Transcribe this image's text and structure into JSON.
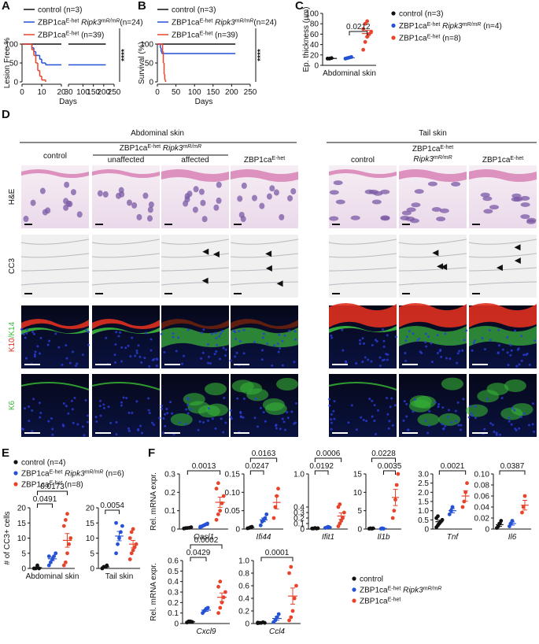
{
  "panels": [
    "A",
    "B",
    "C",
    "D",
    "E",
    "F"
  ],
  "chart_data": [
    {
      "type": "survival",
      "ylabel": "Lesion Free %",
      "xlabel": "Days",
      "xlim": [
        0,
        250
      ],
      "xbreak": [
        20,
        30
      ],
      "xticks": [
        0,
        10,
        20,
        30,
        100,
        150,
        200,
        250
      ],
      "ylim": [
        0,
        100
      ],
      "yticks": [
        0,
        50,
        100
      ],
      "significance": "****",
      "series": [
        {
          "name": "control (n=3)",
          "color": "#111111",
          "x": [
            0,
            210
          ],
          "values": [
            100,
            100
          ]
        },
        {
          "name": [
            {
              "text": "ZBP1ca"
            },
            {
              "text": "E-het",
              "sup": true
            },
            {
              "text": " Ripk3",
              "italic": true
            },
            {
              "text": "mR/mR",
              "sup": true,
              "italic": true
            },
            {
              "text": "(n=24)"
            }
          ],
          "color": "#2451d6",
          "x": [
            0,
            5,
            6,
            7,
            9,
            10,
            12,
            210
          ],
          "values": [
            100,
            90,
            80,
            70,
            60,
            50,
            45,
            45
          ]
        },
        {
          "name": [
            {
              "text": "ZBP1ca"
            },
            {
              "text": "E-het",
              "sup": true
            },
            {
              "text": " (n=39)"
            }
          ],
          "color": "#e8442c",
          "x": [
            0,
            5,
            6,
            7,
            8,
            9,
            10,
            12
          ],
          "values": [
            100,
            85,
            70,
            50,
            30,
            15,
            5,
            0
          ]
        }
      ]
    },
    {
      "type": "survival",
      "ylabel": "Survival (%)",
      "xlabel": "Days",
      "xlim": [
        0,
        250
      ],
      "xticks": [
        0,
        50,
        100,
        150,
        200,
        250
      ],
      "ylim": [
        0,
        100
      ],
      "yticks": [
        0,
        50,
        100
      ],
      "significance": "****",
      "series": [
        {
          "name": "control (n=3)",
          "color": "#111111",
          "x": [
            0,
            210
          ],
          "values": [
            100,
            100
          ]
        },
        {
          "name": [
            {
              "text": "ZBP1ca"
            },
            {
              "text": "E-het",
              "sup": true
            },
            {
              "text": " Ripk3",
              "italic": true
            },
            {
              "text": "mR/mR",
              "sup": true,
              "italic": true
            },
            {
              "text": "(n=24)"
            }
          ],
          "color": "#2451d6",
          "x": [
            0,
            8,
            10,
            12,
            210
          ],
          "values": [
            100,
            90,
            80,
            75,
            75
          ]
        },
        {
          "name": [
            {
              "text": "ZBP1ca"
            },
            {
              "text": "E-het",
              "sup": true
            },
            {
              "text": " (n=39)"
            }
          ],
          "color": "#e8442c",
          "x": [
            0,
            14,
            16,
            18,
            20,
            22
          ],
          "values": [
            100,
            80,
            50,
            20,
            5,
            0
          ]
        }
      ]
    },
    {
      "type": "dot",
      "ylabel": "Ep. thickness (µm)",
      "xlabel": "Abdominal skin",
      "ylim": [
        0,
        100
      ],
      "yticks": [
        0,
        20,
        40,
        60,
        80,
        100
      ],
      "series": [
        {
          "name": "control (n=3)",
          "color": "#111111",
          "values": [
            13,
            13,
            14
          ]
        },
        {
          "name": [
            {
              "text": "ZBP1ca"
            },
            {
              "text": "E-het",
              "sup": true
            },
            {
              "text": " Ripk3",
              "italic": true
            },
            {
              "text": "mR/mR",
              "sup": true,
              "italic": true
            },
            {
              "text": " (n=4)"
            }
          ],
          "color": "#2451d6",
          "values": [
            13,
            14,
            15,
            16
          ]
        },
        {
          "name": [
            {
              "text": "ZBP1ca"
            },
            {
              "text": "E-het",
              "sup": true
            },
            {
              "text": " (n=8)"
            }
          ],
          "color": "#e8442c",
          "values": [
            30,
            45,
            55,
            60,
            65,
            70,
            80,
            85
          ]
        }
      ],
      "annotations": [
        {
          "text": "0.0212",
          "between": [
            1,
            2
          ]
        }
      ]
    },
    {
      "type": "dot",
      "ylabel": "# of CC3+ cells",
      "xlabel": "Abdominal skin",
      "ylim": [
        0,
        20
      ],
      "yticks": [
        0,
        5,
        10,
        15,
        20
      ],
      "series": [
        {
          "color": "#111111",
          "values": [
            0,
            0,
            1,
            0
          ]
        },
        {
          "color": "#2451d6",
          "values": [
            1,
            2,
            3,
            4,
            5,
            4
          ]
        },
        {
          "color": "#e8442c",
          "values": [
            1,
            2,
            5,
            8,
            10,
            14,
            16,
            18
          ]
        }
      ],
      "annotations": [
        {
          "text": "0.0491",
          "between": [
            0,
            1
          ]
        },
        {
          "text": "0.0173",
          "between": [
            0,
            2
          ]
        }
      ]
    },
    {
      "type": "dot",
      "xlabel": "Tail skin",
      "ylim": [
        0,
        20
      ],
      "yticks": [
        0,
        5,
        10,
        15,
        20
      ],
      "series": [
        {
          "color": "#111111",
          "values": [
            0,
            0.5,
            0.5,
            1
          ]
        },
        {
          "color": "#2451d6",
          "values": [
            5,
            8,
            10,
            12,
            14,
            15
          ]
        },
        {
          "color": "#e8442c",
          "values": [
            3,
            5,
            6,
            7,
            8,
            10,
            12,
            13
          ]
        }
      ],
      "annotations": [
        {
          "text": "0.0054",
          "between": [
            0,
            1
          ]
        }
      ]
    },
    {
      "type": "dot",
      "ylabel": "Rel. mRNA expr.",
      "xlabel": [
        {
          "text": "Oasl1",
          "italic": true
        }
      ],
      "ylim": [
        0,
        0.3
      ],
      "yticks": [
        0,
        0.1,
        0.2,
        0.3
      ],
      "series": [
        {
          "color": "#111111",
          "values": [
            0.003,
            0.005,
            0.006,
            0.007,
            0.01
          ]
        },
        {
          "color": "#2451d6",
          "values": [
            0.01,
            0.015,
            0.02,
            0.025,
            0.03
          ]
        },
        {
          "color": "#e8442c",
          "values": [
            0.05,
            0.08,
            0.1,
            0.14,
            0.18,
            0.22,
            0.25
          ]
        }
      ],
      "annotations": [
        {
          "text": "0.0013",
          "between": [
            0,
            2
          ]
        }
      ]
    },
    {
      "type": "dot",
      "xlabel": [
        {
          "text": "Ifi44",
          "italic": true
        }
      ],
      "ylim": [
        0,
        0.15
      ],
      "yticks": [
        0,
        0.05,
        {
          "value": 0.1,
          "label": "0.10"
        },
        0.15
      ],
      "series": [
        {
          "color": "#111111",
          "values": [
            0.002,
            0.003,
            0.005,
            0.006
          ]
        },
        {
          "color": "#2451d6",
          "values": [
            0.01,
            0.02,
            0.025,
            0.03,
            0.04
          ]
        },
        {
          "color": "#e8442c",
          "values": [
            0.03,
            0.06,
            0.09,
            0.11
          ]
        }
      ],
      "annotations": [
        {
          "text": "0.0247",
          "between": [
            0,
            1
          ]
        },
        {
          "text": "0.0163",
          "between": [
            0,
            2
          ]
        }
      ]
    },
    {
      "type": "dot",
      "xlabel": [
        {
          "text": "Ifit1",
          "italic": true
        }
      ],
      "ylim": [
        0,
        1
      ],
      "yticks": [
        0,
        0.1,
        0.2,
        0.3,
        0.4,
        {
          "value": 1,
          "label": "1.0"
        }
      ],
      "series": [
        {
          "color": "#111111",
          "values": [
            0.01,
            0.01,
            0.02,
            0.01,
            0.015
          ]
        },
        {
          "color": "#2451d6",
          "values": [
            0.02,
            0.03,
            0.04,
            0.03
          ]
        },
        {
          "color": "#e8442c",
          "values": [
            0.05,
            0.1,
            0.15,
            0.2,
            0.3,
            0.4,
            0.45
          ]
        }
      ],
      "annotations": [
        {
          "text": "0.0192",
          "between": [
            0,
            1
          ]
        },
        {
          "text": "0.0006",
          "between": [
            0,
            2
          ]
        }
      ]
    },
    {
      "type": "dot",
      "xlabel": [
        {
          "text": "Il1b",
          "italic": true
        }
      ],
      "ylim": [
        0,
        15
      ],
      "yticks": [
        0,
        5,
        10,
        15
      ],
      "series": [
        {
          "color": "#111111",
          "values": [
            0.1,
            0.2,
            0.1,
            0.2
          ]
        },
        {
          "color": "#2451d6",
          "values": [
            0.1,
            0.2,
            0.1
          ]
        },
        {
          "color": "#e8442c",
          "values": [
            3,
            5,
            8,
            12,
            15
          ]
        }
      ],
      "annotations": [
        {
          "text": "0.0035",
          "between": [
            1,
            2
          ]
        },
        {
          "text": "0.0228",
          "between": [
            0,
            2
          ]
        }
      ]
    },
    {
      "type": "dot",
      "xlabel": [
        {
          "text": "Tnf",
          "italic": true
        }
      ],
      "ylim": [
        0,
        3
      ],
      "yticks": [
        0,
        0.5,
        {
          "value": 1,
          "label": "1.0"
        },
        1.5,
        {
          "value": 2,
          "label": "2.0"
        },
        2.5,
        {
          "value": 3,
          "label": "3.0"
        }
      ],
      "series": [
        {
          "color": "#111111",
          "values": [
            0.1,
            0.2,
            0.3,
            0.4,
            0.5,
            0.6,
            0.7
          ]
        },
        {
          "color": "#2451d6",
          "values": [
            0.8,
            1,
            1.2
          ]
        },
        {
          "color": "#e8442c",
          "values": [
            1.2,
            1.5,
            2,
            2.5
          ]
        }
      ],
      "annotations": [
        {
          "text": "0.0021",
          "between": [
            0,
            2
          ]
        }
      ]
    },
    {
      "type": "dot",
      "xlabel": [
        {
          "text": "Il6",
          "italic": true
        }
      ],
      "ylim": [
        0,
        0.1
      ],
      "yticks": [
        0,
        0.02,
        0.04,
        0.06,
        0.08,
        {
          "value": 0.1,
          "label": "0.10"
        }
      ],
      "series": [
        {
          "color": "#111111",
          "values": [
            0.002,
            0.005,
            0.01,
            0.015
          ]
        },
        {
          "color": "#2451d6",
          "values": [
            0.005,
            0.01,
            0.015
          ]
        },
        {
          "color": "#e8442c",
          "values": [
            0.03,
            0.04,
            0.06
          ]
        }
      ],
      "annotations": [
        {
          "text": "0.0387",
          "between": [
            0,
            2
          ]
        }
      ]
    },
    {
      "type": "dot",
      "ylabel": "Rel. mRNA expr.",
      "xlabel": [
        {
          "text": "Cxcl9",
          "italic": true
        }
      ],
      "ylim": [
        0,
        0.6
      ],
      "yticks": [
        0,
        0.1,
        0.2,
        0.3,
        0.4,
        0.5,
        0.6
      ],
      "series": [
        {
          "color": "#111111",
          "values": [
            0.01,
            0.02,
            0.02,
            0.015
          ]
        },
        {
          "color": "#2451d6",
          "values": [
            0.1,
            0.12,
            0.14,
            0.15
          ]
        },
        {
          "color": "#e8442c",
          "values": [
            0.1,
            0.15,
            0.2,
            0.25,
            0.3,
            0.35,
            0.4
          ]
        }
      ],
      "annotations": [
        {
          "text": "0.0429",
          "between": [
            0,
            1
          ]
        },
        {
          "text": "0.0002",
          "between": [
            0,
            2
          ]
        }
      ]
    },
    {
      "type": "dot",
      "xlabel": [
        {
          "text": "Ccl4",
          "italic": true
        }
      ],
      "ylim": [
        0,
        1
      ],
      "yticks": [
        0,
        0.2,
        0.4,
        0.6,
        0.8,
        {
          "value": 1,
          "label": "1.0"
        }
      ],
      "series": [
        {
          "color": "#111111",
          "values": [
            0.005,
            0.01,
            0.01,
            0.02,
            0.01,
            0.015
          ]
        },
        {
          "color": "#2451d6",
          "values": [
            0.02,
            0.05,
            0.1,
            0.15
          ]
        },
        {
          "color": "#e8442c",
          "values": [
            0.05,
            0.1,
            0.2,
            0.4,
            0.6,
            0.8,
            0.9
          ]
        }
      ],
      "annotations": [
        {
          "text": "0.0001",
          "between": [
            0,
            2
          ]
        }
      ]
    }
  ],
  "legends": [
    {
      "items": [
        {
          "name": "control (n=4)",
          "color": "#111111"
        },
        {
          "name": [
            {
              "text": "ZBP1ca"
            },
            {
              "text": "E-het",
              "sup": true
            },
            {
              "text": " Ripk3",
              "italic": true
            },
            {
              "text": "mR/mR",
              "sup": true,
              "italic": true
            },
            {
              "text": " (n=6)"
            }
          ],
          "color": "#2451d6"
        },
        {
          "name": [
            {
              "text": "ZBP1ca"
            },
            {
              "text": "E-het",
              "sup": true
            },
            {
              "text": " (n=8)"
            }
          ],
          "color": "#e8442c"
        }
      ]
    },
    {
      "items": [
        {
          "name": "control",
          "color": "#111111"
        },
        {
          "name": [
            {
              "text": "ZBP1ca"
            },
            {
              "text": "E-het",
              "sup": true
            },
            {
              "text": " Ripk3",
              "italic": true
            },
            {
              "text": "mR/mR",
              "sup": true,
              "italic": true
            }
          ],
          "color": "#2451d6"
        },
        {
          "name": [
            {
              "text": "ZBP1ca"
            },
            {
              "text": "E-het",
              "sup": true
            }
          ],
          "color": "#e8442c"
        }
      ]
    }
  ],
  "micrographs": {
    "sections": [
      "Abdominal skin",
      "Tail skin"
    ],
    "group_header": [
      {
        "text": "ZBP1ca"
      },
      {
        "text": "E-het",
        "sup": true
      },
      {
        "text": " Ripk3",
        "italic": true
      },
      {
        "text": "mR/mR",
        "sup": true,
        "italic": true
      }
    ],
    "columns": [
      "control",
      "unaffected",
      "affected",
      [
        {
          "text": "ZBP1ca"
        },
        {
          "text": "E-het",
          "sup": true
        }
      ],
      "control",
      [
        [
          {
            "text": "ZBP1ca"
          },
          {
            "text": "E-het",
            "sup": true
          }
        ],
        [
          {
            "text": "Ripk3",
            "italic": true
          },
          {
            "text": "mR/mR",
            "sup": true,
            "italic": true
          }
        ]
      ],
      [
        {
          "text": "ZBP1ca"
        },
        {
          "text": "E-het",
          "sup": true
        }
      ]
    ],
    "rows": [
      "H&E",
      "CC3",
      [
        {
          "text": "K10",
          "color": "#e03020"
        },
        {
          "text": "/K14",
          "color": "#3cb83c"
        }
      ],
      [
        {
          "text": "K6",
          "color": "#3cb83c"
        }
      ]
    ]
  }
}
